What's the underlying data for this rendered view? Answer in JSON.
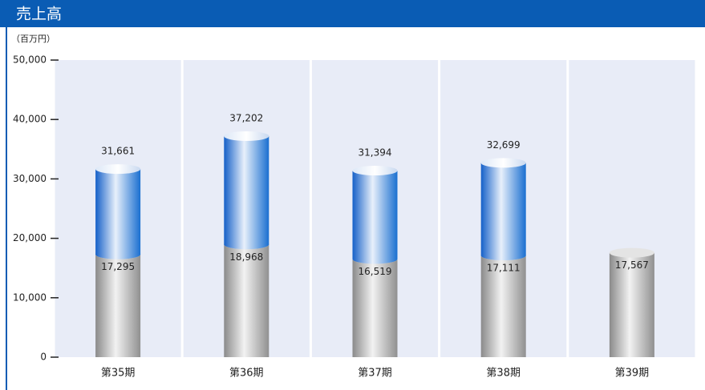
{
  "chart_data": {
    "type": "bar",
    "title": "売上高",
    "unit_label": "（百万円）",
    "categories": [
      "第35期",
      "第36期",
      "第37期",
      "第38期",
      "第39期"
    ],
    "series": [
      {
        "color": "#1a6fd0",
        "values": [
          31661,
          37202,
          31394,
          32699,
          null
        ],
        "value_labels": [
          "31,661",
          "37,202",
          "31,394",
          "32,699",
          null
        ]
      },
      {
        "color": "#a8a8a8",
        "values": [
          17295,
          18968,
          16519,
          17111,
          17567
        ],
        "value_labels": [
          "17,295",
          "18,968",
          "16,519",
          "17,111",
          "17,567"
        ]
      }
    ],
    "ylim": [
      0,
      50000
    ],
    "yticks": [
      0,
      {
        "value": 10000,
        "label": "10,000"
      },
      {
        "value": 20000,
        "label": "20,000"
      },
      {
        "value": 30000,
        "label": "30,000"
      },
      {
        "value": 40000,
        "label": "40,000"
      },
      {
        "value": 50000,
        "label": "50,000"
      }
    ]
  }
}
